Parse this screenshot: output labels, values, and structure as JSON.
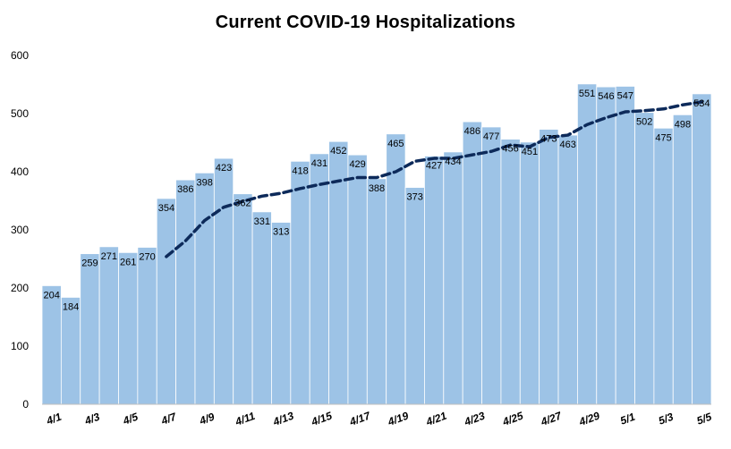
{
  "chart_data": {
    "type": "bar",
    "title": "Current COVID-19 Hospitalizations",
    "xlabel": "",
    "ylabel": "",
    "ylim": [
      0,
      600
    ],
    "yticks": [
      0,
      100,
      200,
      300,
      400,
      500,
      600
    ],
    "grid": false,
    "legend": "none",
    "categories": [
      "4/1",
      "4/2",
      "4/3",
      "4/4",
      "4/5",
      "4/6",
      "4/7",
      "4/8",
      "4/9",
      "4/10",
      "4/11",
      "4/12",
      "4/13",
      "4/14",
      "4/15",
      "4/16",
      "4/17",
      "4/18",
      "4/19",
      "4/20",
      "4/21",
      "4/22",
      "4/23",
      "4/24",
      "4/25",
      "4/26",
      "4/27",
      "4/28",
      "4/29",
      "4/30",
      "5/1",
      "5/2",
      "5/3",
      "5/4",
      "5/5"
    ],
    "x_tick_labels": [
      "4/1",
      "4/3",
      "4/5",
      "4/7",
      "4/9",
      "4/11",
      "4/13",
      "4/15",
      "4/17",
      "4/19",
      "4/21",
      "4/23",
      "4/25",
      "4/27",
      "4/29",
      "5/1",
      "5/3",
      "5/5"
    ],
    "series": [
      {
        "type": "bar",
        "values": [
          204,
          184,
          259,
          271,
          261,
          270,
          354,
          386,
          398,
          423,
          362,
          331,
          313,
          418,
          431,
          452,
          429,
          388,
          465,
          373,
          427,
          434,
          486,
          477,
          456,
          451,
          473,
          463,
          551,
          546,
          547,
          502,
          475,
          498,
          534
        ],
        "color": "#9dc3e6",
        "data_labels": true
      },
      {
        "type": "line",
        "style": "dashed",
        "color": "#0d2a5a",
        "start_index": 6,
        "values": [
          null,
          null,
          null,
          null,
          null,
          null,
          254,
          281,
          316,
          339,
          349,
          358,
          363,
          371,
          378,
          384,
          390,
          390,
          400,
          418,
          423,
          423,
          429,
          435,
          446,
          443,
          459,
          463,
          481,
          493,
          503,
          505,
          508,
          515,
          520
        ]
      }
    ]
  }
}
